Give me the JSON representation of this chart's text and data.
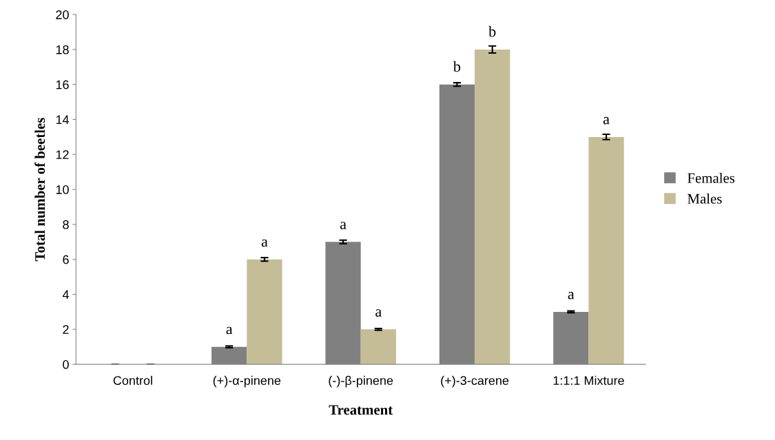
{
  "chart_data": {
    "type": "bar",
    "xlabel": "Treatment",
    "ylabel": "Total number of beetles",
    "categories": [
      "Control",
      "(+)-α-pinene",
      "(-)-β-pinene",
      "(+)-3-carene",
      "1:1:1 Mixture"
    ],
    "series": [
      {
        "name": "Females",
        "color": "#808080",
        "values": [
          0,
          1,
          7,
          16,
          3
        ],
        "errors": [
          0,
          0.05,
          0.1,
          0.1,
          0.05
        ],
        "value_labels": [
          null,
          "a",
          "a",
          "b",
          "a"
        ]
      },
      {
        "name": "Males",
        "color": "#c4bd97",
        "values": [
          0,
          6,
          2,
          18,
          13
        ],
        "errors": [
          0,
          0.1,
          0.05,
          0.2,
          0.15
        ],
        "value_labels": [
          null,
          "a",
          "a",
          "b",
          "a"
        ]
      }
    ],
    "ylim": [
      0,
      20
    ],
    "yticks": [
      0,
      2,
      4,
      6,
      8,
      10,
      12,
      14,
      16,
      18,
      20
    ],
    "grid": false,
    "legend": "right"
  }
}
